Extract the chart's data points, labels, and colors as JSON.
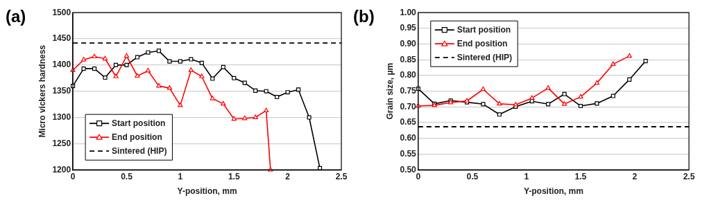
{
  "chart_data": [
    {
      "type": "line",
      "title": "(a)",
      "xlabel": "Y-position, mm",
      "ylabel": "Micro vickers hardness",
      "xlim": [
        0,
        2.5
      ],
      "xticks": [
        0,
        0.5,
        1,
        1.5,
        2,
        2.5
      ],
      "ylim": [
        1200,
        1500
      ],
      "yticks": [
        1200,
        1250,
        1300,
        1350,
        1400,
        1450,
        1500
      ],
      "grid": "y",
      "legend": "bottom left",
      "line_style": "solid",
      "series": [
        {
          "name": "Start position",
          "color": "#000000",
          "marker": "square",
          "x": [
            0,
            0.1,
            0.2,
            0.3,
            0.4,
            0.5,
            0.6,
            0.7,
            0.8,
            0.9,
            1.0,
            1.1,
            1.2,
            1.3,
            1.4,
            1.5,
            1.6,
            1.7,
            1.8,
            1.9,
            2.0,
            2.1,
            2.2,
            2.3
          ],
          "values": [
            1360,
            1393,
            1393,
            1376,
            1400,
            1400,
            1415,
            1424,
            1427,
            1407,
            1407,
            1411,
            1404,
            1374,
            1396,
            1375,
            1366,
            1351,
            1350,
            1339,
            1348,
            1353,
            1300,
            1203
          ]
        },
        {
          "name": "End position",
          "color": "#ff0000",
          "marker": "triangle",
          "x": [
            0,
            0.1,
            0.2,
            0.3,
            0.4,
            0.5,
            0.6,
            0.7,
            0.8,
            0.9,
            1.0,
            1.1,
            1.2,
            1.3,
            1.4,
            1.5,
            1.6,
            1.7,
            1.8,
            1.84
          ],
          "values": [
            1390,
            1410,
            1416,
            1412,
            1378,
            1417,
            1379,
            1389,
            1360,
            1356,
            1323,
            1390,
            1378,
            1336,
            1326,
            1297,
            1298,
            1300,
            1313,
            1200
          ]
        }
      ],
      "ref_lines": [
        {
          "axis": "y",
          "value": 1442,
          "label": "Sintered (HIP)",
          "color": "#000000",
          "line_style": "dashed"
        }
      ]
    },
    {
      "type": "line",
      "title": "(b)",
      "xlabel": "Y-position, mm",
      "ylabel": "Grain size, µm",
      "xlim": [
        0,
        2.5
      ],
      "xticks": [
        0,
        0.5,
        1,
        1.5,
        2,
        2.5
      ],
      "ylim": [
        0.5,
        1.0
      ],
      "yticks": [
        {
          "value": 0.5,
          "label": "0.50"
        },
        {
          "value": 0.55,
          "label": "0.55"
        },
        {
          "value": 0.6,
          "label": "0.60"
        },
        {
          "value": 0.65,
          "label": "0.65"
        },
        {
          "value": 0.7,
          "label": "0.70"
        },
        {
          "value": 0.75,
          "label": "0.75"
        },
        {
          "value": 0.8,
          "label": "0.80"
        },
        {
          "value": 0.85,
          "label": "0.85"
        },
        {
          "value": 0.9,
          "label": "0.90"
        },
        {
          "value": 0.95,
          "label": "0.95"
        },
        {
          "value": 1.0,
          "label": "1.00"
        }
      ],
      "grid": "y",
      "legend": "top left",
      "line_style": "solid",
      "series": [
        {
          "name": "Start position",
          "color": "#000000",
          "marker": "square",
          "x": [
            0,
            0.15,
            0.3,
            0.45,
            0.6,
            0.75,
            0.9,
            1.05,
            1.2,
            1.35,
            1.5,
            1.65,
            1.8,
            1.95,
            2.1
          ],
          "values": [
            0.758,
            0.71,
            0.72,
            0.715,
            0.709,
            0.676,
            0.701,
            0.718,
            0.709,
            0.741,
            0.703,
            0.711,
            0.735,
            0.787,
            0.846
          ]
        },
        {
          "name": "End position",
          "color": "#ff0000",
          "marker": "triangle",
          "x": [
            0,
            0.15,
            0.3,
            0.45,
            0.6,
            0.75,
            0.9,
            1.05,
            1.2,
            1.35,
            1.5,
            1.65,
            1.8,
            1.95
          ],
          "values": [
            0.703,
            0.705,
            0.714,
            0.719,
            0.756,
            0.71,
            0.707,
            0.728,
            0.76,
            0.709,
            0.732,
            0.776,
            0.836,
            0.862
          ]
        }
      ],
      "ref_lines": [
        {
          "axis": "y",
          "value": 0.637,
          "label": "Sintered (HIP)",
          "color": "#000000",
          "line_style": "dashed"
        }
      ]
    }
  ]
}
